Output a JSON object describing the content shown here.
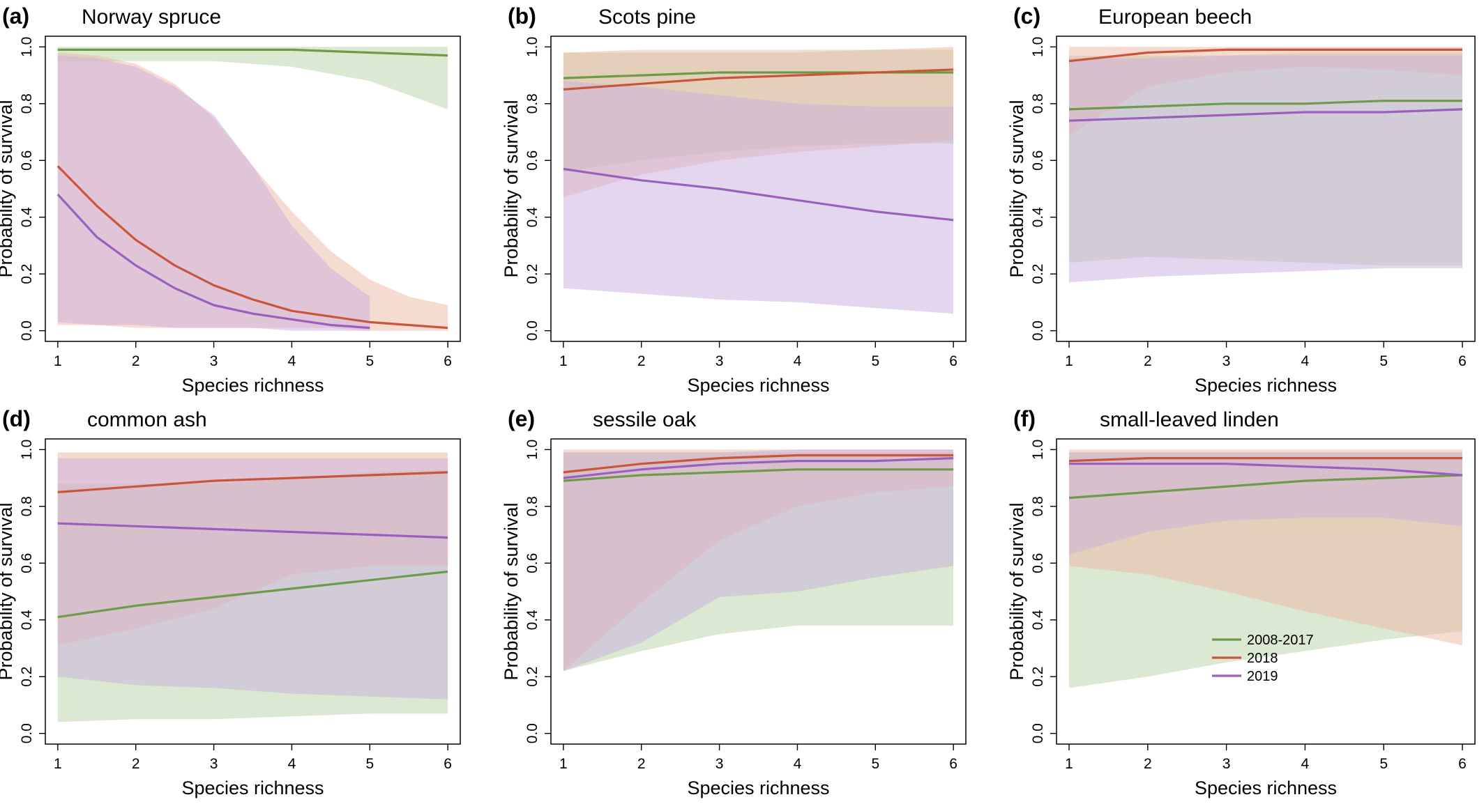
{
  "figure": {
    "ylabel": "Probability of survival",
    "xlabel": "Species richness",
    "legend": {
      "placement": "panel-f-lower-middle",
      "entries": [
        {
          "label": "2008-2017",
          "color": "#6e9a4a"
        },
        {
          "label": "2018",
          "color": "#c9553a"
        },
        {
          "label": "2019",
          "color": "#9b5fc0"
        }
      ]
    },
    "band_colors": {
      "2008-2017": "#b8d4a6",
      "2018": "#eeb8a2",
      "2019": "#c9aedd"
    }
  },
  "chart_data": [
    {
      "type": "line",
      "letter": "(a)",
      "title": "Norway spruce",
      "xlabel": "Species richness",
      "ylabel": "Probability of survival",
      "xlim": [
        1,
        6
      ],
      "ylim": [
        0,
        1
      ],
      "x_ticks": [
        1,
        2,
        3,
        4,
        5,
        6
      ],
      "y_ticks": [
        0.0,
        0.2,
        0.4,
        0.6,
        0.8,
        1.0
      ],
      "series": [
        {
          "name": "2008-2017",
          "x": [
            1,
            2,
            3,
            4,
            5,
            6
          ],
          "y": [
            0.99,
            0.99,
            0.99,
            0.99,
            0.98,
            0.97
          ],
          "lower": [
            0.95,
            0.95,
            0.95,
            0.93,
            0.88,
            0.78
          ],
          "upper": [
            1.0,
            1.0,
            1.0,
            1.0,
            1.0,
            1.0
          ]
        },
        {
          "name": "2018",
          "x": [
            1,
            1.5,
            2,
            2.5,
            3,
            3.5,
            4,
            4.5,
            5,
            5.5,
            6
          ],
          "y": [
            0.58,
            0.44,
            0.32,
            0.23,
            0.16,
            0.11,
            0.07,
            0.05,
            0.03,
            0.02,
            0.01
          ],
          "lower": [
            0.02,
            0.02,
            0.01,
            0.01,
            0.01,
            0.01,
            0.01,
            0.01,
            0.0,
            0.0,
            0.0
          ],
          "upper": [
            0.98,
            0.97,
            0.94,
            0.87,
            0.75,
            0.58,
            0.42,
            0.28,
            0.18,
            0.12,
            0.09
          ]
        },
        {
          "name": "2019",
          "x": [
            1,
            1.5,
            2,
            2.5,
            3,
            3.5,
            4,
            4.5,
            5
          ],
          "y": [
            0.48,
            0.33,
            0.23,
            0.15,
            0.09,
            0.06,
            0.04,
            0.02,
            0.01
          ],
          "lower": [
            0.03,
            0.02,
            0.02,
            0.01,
            0.01,
            0.01,
            0.0,
            0.0,
            0.0
          ],
          "upper": [
            0.97,
            0.96,
            0.93,
            0.86,
            0.76,
            0.58,
            0.37,
            0.22,
            0.12
          ]
        }
      ]
    },
    {
      "type": "line",
      "letter": "(b)",
      "title": "Scots pine",
      "xlabel": "Species richness",
      "ylabel": "Probability of survival",
      "xlim": [
        1,
        6
      ],
      "ylim": [
        0,
        1
      ],
      "x_ticks": [
        1,
        2,
        3,
        4,
        5,
        6
      ],
      "y_ticks": [
        0.0,
        0.2,
        0.4,
        0.6,
        0.8,
        1.0
      ],
      "series": [
        {
          "name": "2008-2017",
          "x": [
            1,
            2,
            3,
            4,
            5,
            6
          ],
          "y": [
            0.89,
            0.9,
            0.91,
            0.91,
            0.91,
            0.91
          ],
          "lower": [
            0.56,
            0.6,
            0.63,
            0.65,
            0.66,
            0.66
          ],
          "upper": [
            0.98,
            0.98,
            0.98,
            0.98,
            0.99,
            0.99
          ]
        },
        {
          "name": "2018",
          "x": [
            1,
            2,
            3,
            4,
            5,
            6
          ],
          "y": [
            0.85,
            0.87,
            0.89,
            0.9,
            0.91,
            0.92
          ],
          "lower": [
            0.47,
            0.55,
            0.6,
            0.63,
            0.65,
            0.67
          ],
          "upper": [
            0.98,
            0.99,
            0.99,
            0.99,
            0.99,
            1.0
          ]
        },
        {
          "name": "2019",
          "x": [
            1,
            2,
            3,
            4,
            5,
            6
          ],
          "y": [
            0.57,
            0.53,
            0.5,
            0.46,
            0.42,
            0.39
          ],
          "lower": [
            0.15,
            0.13,
            0.11,
            0.1,
            0.08,
            0.06
          ],
          "upper": [
            0.88,
            0.86,
            0.83,
            0.8,
            0.79,
            0.79
          ]
        }
      ]
    },
    {
      "type": "line",
      "letter": "(c)",
      "title": "European beech",
      "xlabel": "Species richness",
      "ylabel": "Probability of survival",
      "xlim": [
        1,
        6
      ],
      "ylim": [
        0,
        1
      ],
      "x_ticks": [
        1,
        2,
        3,
        4,
        5,
        6
      ],
      "y_ticks": [
        0.0,
        0.2,
        0.4,
        0.6,
        0.8,
        1.0
      ],
      "series": [
        {
          "name": "2008-2017",
          "x": [
            1,
            2,
            3,
            4,
            5,
            6
          ],
          "y": [
            0.78,
            0.79,
            0.8,
            0.8,
            0.81,
            0.81
          ],
          "lower": [
            0.24,
            0.26,
            0.25,
            0.24,
            0.23,
            0.23
          ],
          "upper": [
            0.97,
            0.97,
            0.97,
            0.98,
            0.98,
            0.98
          ]
        },
        {
          "name": "2018",
          "x": [
            1,
            2,
            3,
            4,
            5,
            6
          ],
          "y": [
            0.95,
            0.98,
            0.99,
            0.99,
            0.99,
            0.99
          ],
          "lower": [
            0.69,
            0.86,
            0.91,
            0.93,
            0.92,
            0.9
          ],
          "upper": [
            1.0,
            1.0,
            1.0,
            1.0,
            1.0,
            1.0
          ]
        },
        {
          "name": "2019",
          "x": [
            1,
            2,
            3,
            4,
            5,
            6
          ],
          "y": [
            0.74,
            0.75,
            0.76,
            0.77,
            0.77,
            0.78
          ],
          "lower": [
            0.17,
            0.19,
            0.2,
            0.21,
            0.22,
            0.22
          ],
          "upper": [
            0.96,
            0.96,
            0.97,
            0.97,
            0.97,
            0.97
          ]
        }
      ]
    },
    {
      "type": "line",
      "letter": "(d)",
      "title": "common ash",
      "xlabel": "Species richness",
      "ylabel": "Probability of survival",
      "xlim": [
        1,
        6
      ],
      "ylim": [
        0,
        1
      ],
      "x_ticks": [
        1,
        2,
        3,
        4,
        5,
        6
      ],
      "y_ticks": [
        0.0,
        0.2,
        0.4,
        0.6,
        0.8,
        1.0
      ],
      "series": [
        {
          "name": "2008-2017",
          "x": [
            1,
            2,
            3,
            4,
            5,
            6
          ],
          "y": [
            0.41,
            0.45,
            0.48,
            0.51,
            0.54,
            0.57
          ],
          "lower": [
            0.04,
            0.05,
            0.05,
            0.06,
            0.07,
            0.07
          ],
          "upper": [
            0.88,
            0.88,
            0.88,
            0.9,
            0.92,
            0.93
          ]
        },
        {
          "name": "2018",
          "x": [
            1,
            2,
            3,
            4,
            5,
            6
          ],
          "y": [
            0.85,
            0.87,
            0.89,
            0.9,
            0.91,
            0.92
          ],
          "lower": [
            0.31,
            0.37,
            0.44,
            0.56,
            0.59,
            0.59
          ],
          "upper": [
            0.99,
            0.99,
            0.99,
            0.99,
            0.99,
            0.99
          ]
        },
        {
          "name": "2019",
          "x": [
            1,
            2,
            3,
            4,
            5,
            6
          ],
          "y": [
            0.74,
            0.73,
            0.72,
            0.71,
            0.7,
            0.69
          ],
          "lower": [
            0.2,
            0.17,
            0.16,
            0.14,
            0.13,
            0.12
          ],
          "upper": [
            0.97,
            0.97,
            0.97,
            0.97,
            0.97,
            0.97
          ]
        }
      ]
    },
    {
      "type": "line",
      "letter": "(e)",
      "title": "sessile oak",
      "xlabel": "Species richness",
      "ylabel": "Probability of survival",
      "xlim": [
        1,
        6
      ],
      "ylim": [
        0,
        1
      ],
      "x_ticks": [
        1,
        2,
        3,
        4,
        5,
        6
      ],
      "y_ticks": [
        0.0,
        0.2,
        0.4,
        0.6,
        0.8,
        1.0
      ],
      "series": [
        {
          "name": "2008-2017",
          "x": [
            1,
            2,
            3,
            4,
            5,
            6
          ],
          "y": [
            0.89,
            0.91,
            0.92,
            0.93,
            0.93,
            0.93
          ],
          "lower": [
            0.22,
            0.29,
            0.35,
            0.38,
            0.38,
            0.38
          ],
          "upper": [
            0.99,
            0.99,
            0.99,
            0.99,
            0.99,
            0.99
          ]
        },
        {
          "name": "2018",
          "x": [
            1,
            2,
            3,
            4,
            5,
            6
          ],
          "y": [
            0.92,
            0.95,
            0.97,
            0.98,
            0.98,
            0.98
          ],
          "lower": [
            0.22,
            0.46,
            0.68,
            0.8,
            0.85,
            0.87
          ],
          "upper": [
            1.0,
            1.0,
            1.0,
            1.0,
            1.0,
            1.0
          ]
        },
        {
          "name": "2019",
          "x": [
            1,
            2,
            3,
            4,
            5,
            6
          ],
          "y": [
            0.9,
            0.93,
            0.95,
            0.96,
            0.96,
            0.97
          ],
          "lower": [
            0.22,
            0.32,
            0.48,
            0.5,
            0.55,
            0.59
          ],
          "upper": [
            0.99,
            0.99,
            0.99,
            1.0,
            1.0,
            1.0
          ]
        }
      ]
    },
    {
      "type": "line",
      "letter": "(f)",
      "title": "small-leaved linden",
      "xlabel": "Species richness",
      "ylabel": "Probability of survival",
      "xlim": [
        1,
        6
      ],
      "ylim": [
        0,
        1
      ],
      "x_ticks": [
        1,
        2,
        3,
        4,
        5,
        6
      ],
      "y_ticks": [
        0.0,
        0.2,
        0.4,
        0.6,
        0.8,
        1.0
      ],
      "series": [
        {
          "name": "2008-2017",
          "x": [
            1,
            2,
            3,
            4,
            5,
            6
          ],
          "y": [
            0.83,
            0.85,
            0.87,
            0.89,
            0.9,
            0.91
          ],
          "lower": [
            0.16,
            0.2,
            0.25,
            0.29,
            0.33,
            0.36
          ],
          "upper": [
            0.99,
            0.99,
            0.99,
            0.99,
            0.99,
            0.99
          ]
        },
        {
          "name": "2018",
          "x": [
            1,
            2,
            3,
            4,
            5,
            6
          ],
          "y": [
            0.96,
            0.97,
            0.97,
            0.97,
            0.97,
            0.97
          ],
          "lower": [
            0.59,
            0.56,
            0.5,
            0.43,
            0.37,
            0.31
          ],
          "upper": [
            1.0,
            1.0,
            1.0,
            1.0,
            1.0,
            1.0
          ]
        },
        {
          "name": "2019",
          "x": [
            1,
            2,
            3,
            4,
            5,
            6
          ],
          "y": [
            0.95,
            0.95,
            0.95,
            0.94,
            0.93,
            0.91
          ],
          "lower": [
            0.63,
            0.71,
            0.75,
            0.76,
            0.76,
            0.73
          ],
          "upper": [
            0.99,
            0.99,
            0.99,
            0.99,
            0.99,
            0.99
          ]
        }
      ]
    }
  ]
}
